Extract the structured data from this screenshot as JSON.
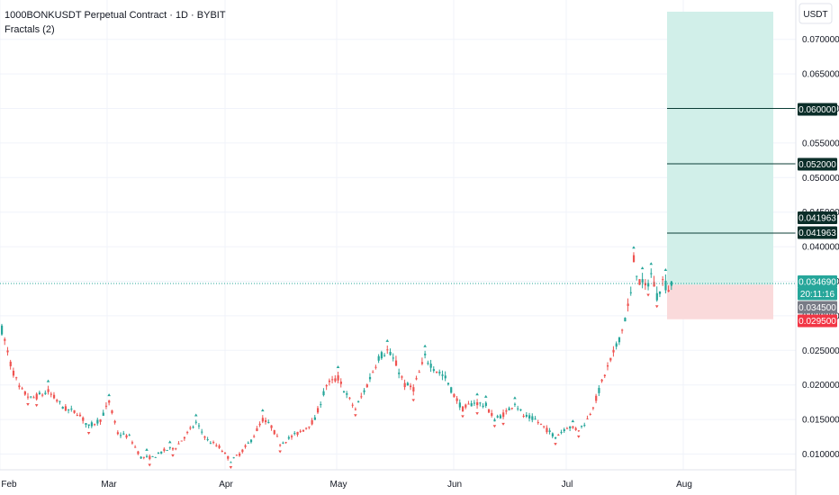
{
  "legend": {
    "symbol": "1000BONKUSDT Perpetual Contract · 1D · BYBIT",
    "indicator": "Fractals (2)"
  },
  "currency_button": "USDT",
  "colors": {
    "up": "#26a69a",
    "down": "#ef5350",
    "grid": "#f0f3fa",
    "profit_zone": "#d1efe9",
    "loss_zone": "#fadadb",
    "target_line": "#0b3d36",
    "last_price_tag": "#26a69a",
    "entry_tag": "#787b86",
    "stop_tag": "#f23645",
    "dark_tag": "#0b2e29"
  },
  "chart_data": {
    "type": "candlestick",
    "title": "1000BONKUSDT Perpetual Contract · 1D · BYBIT",
    "indicators": [
      "Fractals (2)"
    ],
    "y_axis": {
      "currency": "USDT",
      "ticks": [
        "0.070000",
        "0.065000",
        "0.060000",
        "0.055000",
        "0.050000",
        "0.045000",
        "0.040000",
        "0.035000",
        "0.030000",
        "0.025000",
        "0.020000",
        "0.015000",
        "0.010000"
      ],
      "range": [
        0.007,
        0.0742
      ]
    },
    "x_axis": {
      "ticks": [
        "Feb",
        "Mar",
        "Apr",
        "May",
        "Jun",
        "Jul",
        "Aug"
      ]
    },
    "grid": true,
    "price_tags": [
      {
        "value": "0.060000",
        "kind": "target"
      },
      {
        "value": "0.052000",
        "kind": "target"
      },
      {
        "value": "0.041963",
        "kind": "target"
      },
      {
        "value": "0.041963",
        "kind": "target"
      },
      {
        "value": "0.034690",
        "kind": "last"
      },
      {
        "value": "20:11:16",
        "kind": "countdown"
      },
      {
        "value": "0.034500",
        "kind": "entry"
      },
      {
        "value": "0.029500",
        "kind": "stop"
      }
    ],
    "position_tool": {
      "entry": 0.0345,
      "stop": 0.0295,
      "target": 0.074,
      "levels": [
        0.06,
        0.052,
        0.041963
      ]
    },
    "fractal_marks": "up arrows above local highs, down arrows below local lows"
  }
}
